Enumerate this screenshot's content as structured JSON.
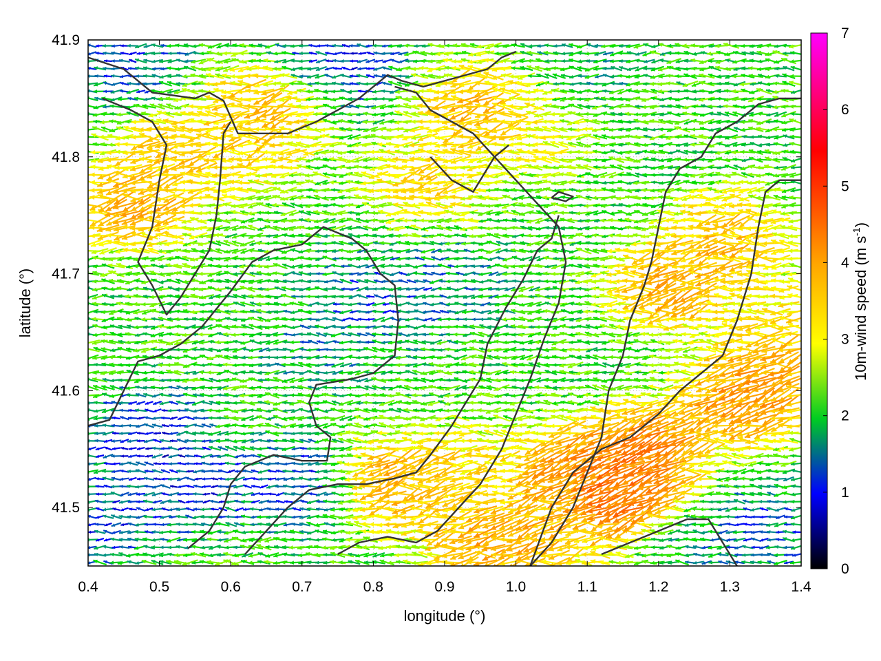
{
  "chart_data": {
    "type": "vector-field",
    "xlabel": "longitude (°)",
    "ylabel": "latitude (°)",
    "colorbar_label": "10m-wind speed (m s",
    "colorbar_label_sup": "-1",
    "colorbar_label_end": ")",
    "xlim": [
      0.4,
      1.4
    ],
    "ylim": [
      41.45,
      41.9
    ],
    "xticks": [
      "0.4",
      "0.5",
      "0.6",
      "0.7",
      "0.8",
      "0.9",
      "1.0",
      "1.1",
      "1.2",
      "1.3",
      "1.4"
    ],
    "xtick_values": [
      0.4,
      0.5,
      0.6,
      0.7,
      0.8,
      0.9,
      1.0,
      1.1,
      1.2,
      1.3,
      1.4
    ],
    "yticks": [
      "41.5",
      "41.6",
      "41.7",
      "41.8",
      "41.9"
    ],
    "ytick_values": [
      41.5,
      41.6,
      41.7,
      41.8,
      41.9
    ],
    "colorbar_range": [
      0,
      7
    ],
    "colorbar_ticks": [
      "0",
      "1",
      "2",
      "3",
      "4",
      "5",
      "6",
      "7"
    ],
    "colorbar_tick_values": [
      0,
      1,
      2,
      3,
      4,
      5,
      6,
      7
    ],
    "colormap": [
      "#000000",
      "#0000ff",
      "#00ff00",
      "#ffff00",
      "#ffa500",
      "#ff0000",
      "#ff00ff"
    ],
    "grid": "dotted",
    "speed_regions": [
      {
        "lon": 0.47,
        "lat": 41.76,
        "speed": 4.2
      },
      {
        "lon": 0.52,
        "lat": 41.8,
        "speed": 3.8
      },
      {
        "lon": 0.65,
        "lat": 41.84,
        "speed": 4.0
      },
      {
        "lon": 0.62,
        "lat": 41.81,
        "speed": 3.6
      },
      {
        "lon": 0.95,
        "lat": 41.84,
        "speed": 4.1
      },
      {
        "lon": 0.88,
        "lat": 41.78,
        "speed": 3.6
      },
      {
        "lon": 1.02,
        "lat": 41.82,
        "speed": 3.2
      },
      {
        "lon": 1.3,
        "lat": 41.73,
        "speed": 4.0
      },
      {
        "lon": 1.22,
        "lat": 41.69,
        "speed": 4.3
      },
      {
        "lon": 1.38,
        "lat": 41.66,
        "speed": 3.5
      },
      {
        "lon": 0.83,
        "lat": 41.52,
        "speed": 4.3
      },
      {
        "lon": 0.93,
        "lat": 41.53,
        "speed": 3.6
      },
      {
        "lon": 1.08,
        "lat": 41.53,
        "speed": 4.6
      },
      {
        "lon": 1.16,
        "lat": 41.51,
        "speed": 5.2
      },
      {
        "lon": 1.18,
        "lat": 41.55,
        "speed": 4.8
      },
      {
        "lon": 1.32,
        "lat": 41.59,
        "speed": 4.6
      },
      {
        "lon": 1.36,
        "lat": 41.62,
        "speed": 4.2
      },
      {
        "lon": 0.96,
        "lat": 41.47,
        "speed": 4.4
      },
      {
        "lon": 1.05,
        "lat": 41.48,
        "speed": 4.0
      },
      {
        "lon": 0.8,
        "lat": 41.68,
        "speed": 1.2
      },
      {
        "lon": 0.73,
        "lat": 41.64,
        "speed": 1.5
      },
      {
        "lon": 0.9,
        "lat": 41.69,
        "speed": 1.4
      },
      {
        "lon": 0.48,
        "lat": 41.56,
        "speed": 0.8
      },
      {
        "lon": 0.55,
        "lat": 41.52,
        "speed": 0.9
      },
      {
        "lon": 0.7,
        "lat": 41.52,
        "speed": 1.0
      },
      {
        "lon": 0.42,
        "lat": 41.49,
        "speed": 1.0
      },
      {
        "lon": 0.75,
        "lat": 41.88,
        "speed": 0.9
      },
      {
        "lon": 0.45,
        "lat": 41.88,
        "speed": 1.1
      },
      {
        "lon": 1.35,
        "lat": 41.48,
        "speed": 1.2
      },
      {
        "lon": 1.25,
        "lat": 41.47,
        "speed": 1.6
      },
      {
        "lon": 1.1,
        "lat": 41.88,
        "speed": 1.7
      }
    ],
    "base_speed": 2.1,
    "coastlines": [
      [
        [
          0.4,
          41.885
        ],
        [
          0.45,
          41.875
        ],
        [
          0.49,
          41.855
        ],
        [
          0.55,
          41.85
        ],
        [
          0.57,
          41.855
        ],
        [
          0.59,
          41.848
        ],
        [
          0.61,
          41.82
        ],
        [
          0.64,
          41.82
        ],
        [
          0.68,
          41.82
        ],
        [
          0.72,
          41.83
        ],
        [
          0.75,
          41.84
        ],
        [
          0.78,
          41.85
        ],
        [
          0.8,
          41.86
        ],
        [
          0.82,
          41.87
        ],
        [
          0.84,
          41.865
        ],
        [
          0.87,
          41.86
        ],
        [
          0.9,
          41.865
        ],
        [
          0.93,
          41.87
        ],
        [
          0.96,
          41.875
        ],
        [
          0.98,
          41.885
        ],
        [
          1.0,
          41.89
        ]
      ],
      [
        [
          0.42,
          41.85
        ],
        [
          0.46,
          41.84
        ],
        [
          0.49,
          41.83
        ],
        [
          0.51,
          41.81
        ],
        [
          0.5,
          41.78
        ],
        [
          0.49,
          41.74
        ],
        [
          0.47,
          41.71
        ],
        [
          0.49,
          41.69
        ],
        [
          0.51,
          41.665
        ],
        [
          0.53,
          41.68
        ],
        [
          0.55,
          41.7
        ],
        [
          0.57,
          41.72
        ],
        [
          0.58,
          41.75
        ],
        [
          0.585,
          41.78
        ],
        [
          0.59,
          41.82
        ],
        [
          0.6,
          41.83
        ]
      ],
      [
        [
          0.4,
          41.57
        ],
        [
          0.43,
          41.575
        ],
        [
          0.45,
          41.6
        ],
        [
          0.47,
          41.625
        ],
        [
          0.5,
          41.63
        ],
        [
          0.53,
          41.64
        ],
        [
          0.56,
          41.655
        ],
        [
          0.6,
          41.685
        ],
        [
          0.63,
          41.71
        ],
        [
          0.66,
          41.72
        ],
        [
          0.7,
          41.725
        ],
        [
          0.73,
          41.74
        ],
        [
          0.75,
          41.735
        ],
        [
          0.77,
          41.73
        ],
        [
          0.79,
          41.72
        ],
        [
          0.81,
          41.7
        ],
        [
          0.83,
          41.69
        ],
        [
          0.835,
          41.66
        ],
        [
          0.83,
          41.63
        ],
        [
          0.8,
          41.615
        ],
        [
          0.77,
          41.61
        ],
        [
          0.72,
          41.605
        ],
        [
          0.71,
          41.59
        ],
        [
          0.72,
          41.57
        ],
        [
          0.74,
          41.56
        ],
        [
          0.735,
          41.54
        ],
        [
          0.7,
          41.54
        ],
        [
          0.66,
          41.545
        ],
        [
          0.62,
          41.535
        ],
        [
          0.6,
          41.52
        ],
        [
          0.59,
          41.5
        ],
        [
          0.57,
          41.48
        ],
        [
          0.54,
          41.465
        ]
      ],
      [
        [
          0.62,
          41.46
        ],
        [
          0.65,
          41.48
        ],
        [
          0.68,
          41.5
        ],
        [
          0.71,
          41.515
        ],
        [
          0.75,
          41.52
        ],
        [
          0.79,
          41.52
        ],
        [
          0.83,
          41.525
        ],
        [
          0.86,
          41.53
        ],
        [
          0.88,
          41.545
        ],
        [
          0.91,
          41.57
        ],
        [
          0.93,
          41.59
        ],
        [
          0.95,
          41.61
        ],
        [
          0.96,
          41.64
        ],
        [
          0.985,
          41.67
        ],
        [
          1.01,
          41.695
        ],
        [
          1.03,
          41.72
        ],
        [
          1.05,
          41.73
        ],
        [
          1.06,
          41.75
        ]
      ],
      [
        [
          0.75,
          41.46
        ],
        [
          0.78,
          41.47
        ],
        [
          0.82,
          41.475
        ],
        [
          0.86,
          41.47
        ],
        [
          0.89,
          41.48
        ],
        [
          0.92,
          41.5
        ],
        [
          0.95,
          41.52
        ],
        [
          0.98,
          41.55
        ],
        [
          1.0,
          41.58
        ],
        [
          1.02,
          41.61
        ],
        [
          1.04,
          41.645
        ],
        [
          1.06,
          41.675
        ],
        [
          1.07,
          41.71
        ],
        [
          1.06,
          41.74
        ],
        [
          1.03,
          41.76
        ],
        [
          1.0,
          41.78
        ],
        [
          0.97,
          41.8
        ],
        [
          0.94,
          41.82
        ],
        [
          0.91,
          41.83
        ],
        [
          0.88,
          41.84
        ],
        [
          0.86,
          41.855
        ],
        [
          0.83,
          41.86
        ]
      ],
      [
        [
          1.02,
          41.45
        ],
        [
          1.05,
          41.47
        ],
        [
          1.08,
          41.5
        ],
        [
          1.1,
          41.53
        ],
        [
          1.12,
          41.56
        ],
        [
          1.13,
          41.6
        ],
        [
          1.15,
          41.63
        ],
        [
          1.16,
          41.66
        ],
        [
          1.18,
          41.69
        ],
        [
          1.19,
          41.71
        ],
        [
          1.2,
          41.74
        ],
        [
          1.21,
          41.77
        ],
        [
          1.23,
          41.79
        ],
        [
          1.26,
          41.8
        ],
        [
          1.28,
          41.82
        ],
        [
          1.31,
          41.83
        ],
        [
          1.34,
          41.845
        ],
        [
          1.37,
          41.85
        ],
        [
          1.4,
          41.85
        ]
      ],
      [
        [
          1.02,
          41.45
        ],
        [
          1.05,
          41.5
        ],
        [
          1.08,
          41.53
        ],
        [
          1.12,
          41.55
        ],
        [
          1.16,
          41.56
        ],
        [
          1.2,
          41.58
        ],
        [
          1.23,
          41.6
        ],
        [
          1.26,
          41.615
        ],
        [
          1.29,
          41.63
        ],
        [
          1.31,
          41.66
        ],
        [
          1.33,
          41.7
        ],
        [
          1.34,
          41.74
        ],
        [
          1.35,
          41.77
        ],
        [
          1.37,
          41.78
        ],
        [
          1.4,
          41.78
        ]
      ],
      [
        [
          1.12,
          41.46
        ],
        [
          1.16,
          41.47
        ],
        [
          1.2,
          41.48
        ],
        [
          1.24,
          41.49
        ],
        [
          1.27,
          41.49
        ],
        [
          1.29,
          41.47
        ],
        [
          1.31,
          41.45
        ]
      ],
      [
        [
          0.88,
          41.8
        ],
        [
          0.91,
          41.78
        ],
        [
          0.94,
          41.77
        ],
        [
          0.97,
          41.8
        ],
        [
          0.99,
          41.81
        ]
      ],
      [
        [
          1.05,
          41.765
        ],
        [
          1.07,
          41.762
        ],
        [
          1.08,
          41.766
        ],
        [
          1.06,
          41.77
        ],
        [
          1.05,
          41.765
        ]
      ]
    ]
  }
}
